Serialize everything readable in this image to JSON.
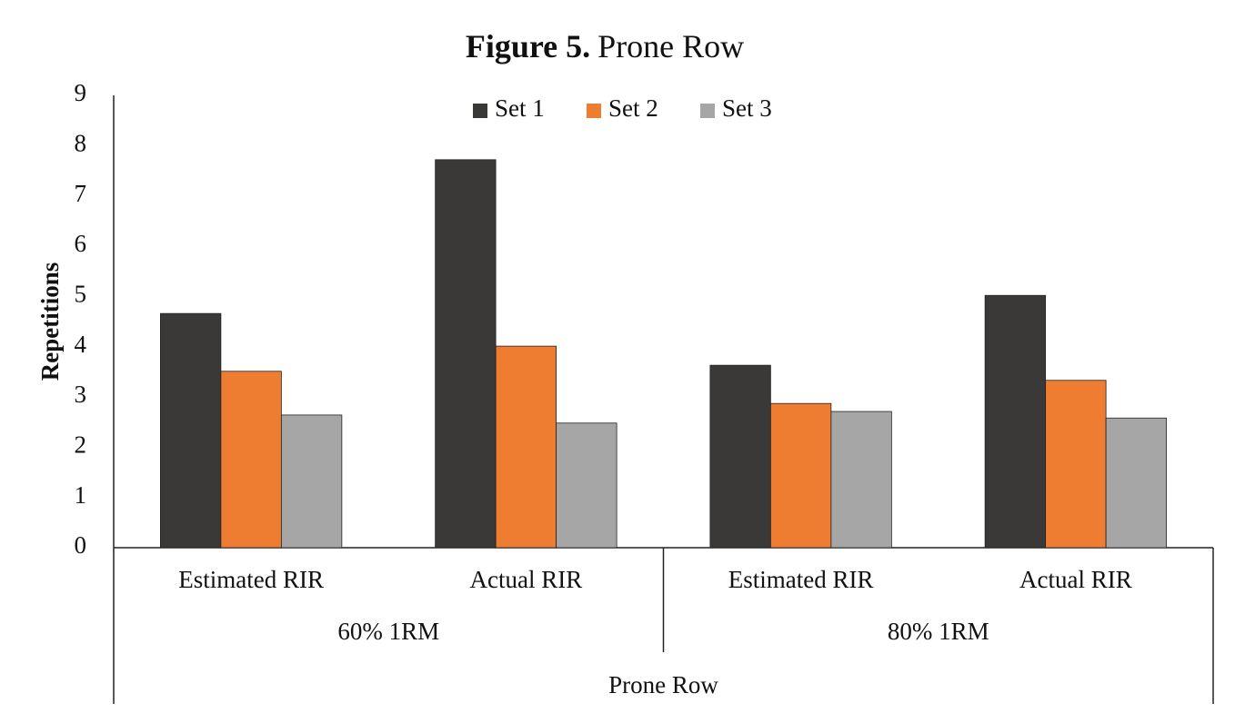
{
  "chart_data": {
    "type": "bar",
    "title_label": "Figure 5.",
    "title": "Prone Row",
    "y_label": "Repetitions",
    "categories": [
      "Estimated RIR",
      "Actual RIR",
      "Estimated RIR",
      "Actual RIR"
    ],
    "groups": [
      "60% 1RM",
      "80% 1RM"
    ],
    "supergroup": "Prone Row",
    "series": [
      {
        "name": "Set 1",
        "color": "#3a3937",
        "values": [
          4.66,
          7.72,
          3.63,
          5.02
        ]
      },
      {
        "name": "Set 2",
        "color": "#ee7d31",
        "values": [
          3.51,
          4.01,
          2.87,
          3.33
        ]
      },
      {
        "name": "Set 3",
        "color": "#a6a6a6",
        "values": [
          2.64,
          2.48,
          2.71,
          2.58
        ]
      }
    ],
    "ylim": [
      0,
      9
    ],
    "yticks": [
      0,
      1,
      2,
      3,
      4,
      5,
      6,
      7,
      8,
      9
    ],
    "grid": false,
    "legend": "top"
  }
}
